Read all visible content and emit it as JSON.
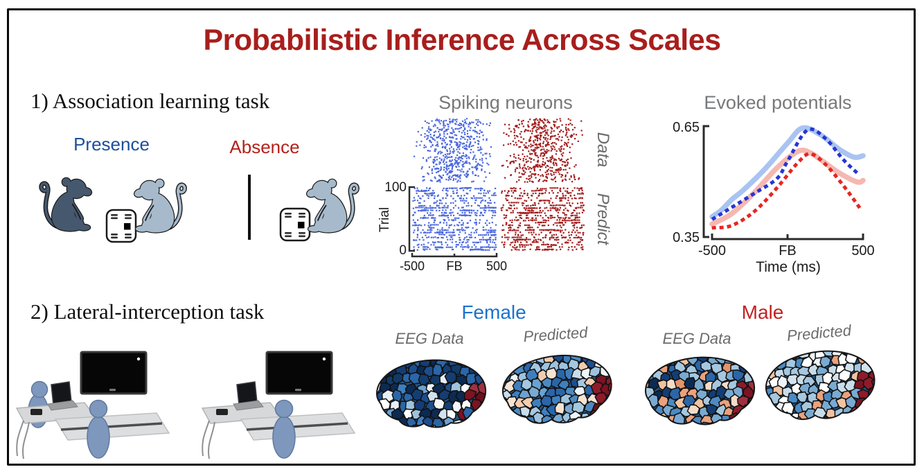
{
  "figure_title": "Probabilistic Inference Across Scales",
  "section1": {
    "heading": "1) Association learning task",
    "presence_label": "Presence",
    "absence_label": "Absence"
  },
  "section2": {
    "heading": "2) Lateral-interception task",
    "female_label": "Female",
    "male_label": "Male",
    "female_map_labels": [
      "EEG Data",
      "Predicted"
    ],
    "male_map_labels": [
      "EEG Data",
      "Predicted"
    ]
  },
  "spiking": {
    "title": "Spiking neurons",
    "row_labels": [
      "Data",
      "Predict"
    ],
    "ylabel": "Trial",
    "ytick_top": "100",
    "ytick_bottom": "0",
    "xticks": [
      "-500",
      "FB",
      "500"
    ]
  },
  "evoked": {
    "title": "Evoked potentials",
    "ytick_top": "0.65",
    "ytick_bottom": "0.35",
    "xticks": [
      "-500",
      "FB",
      "500"
    ],
    "xlabel": "Time (ms)"
  },
  "colors": {
    "title_red": "#a81e1c",
    "presence_blue": "#1c4f9c",
    "absence_red": "#b2221a",
    "female_blue": "#1a73cf",
    "male_red": "#c32120",
    "plot_title_gray": "#77787a",
    "panel_label_gray": "#6a6b6d",
    "monkey_dark": "#46586e",
    "monkey_light": "#a6bacc"
  },
  "chart_data": [
    {
      "type": "raster",
      "title": "Spiking neurons",
      "rows": [
        "Data",
        "Predict"
      ],
      "conditions": [
        {
          "name": "Presence",
          "color": "#4b68dd"
        },
        {
          "name": "Absence",
          "color": "#a21d1d"
        }
      ],
      "ylabel": "Trial",
      "ylim": [
        0,
        100
      ],
      "xlim_ms": [
        -500,
        500
      ],
      "x_event": "FB",
      "approx_dots_per_panel": 560
    },
    {
      "type": "line",
      "title": "Evoked potentials",
      "xlabel": "Time (ms)",
      "xlim_ms": [
        -500,
        500
      ],
      "x_event": "FB",
      "ylim": [
        0.35,
        0.65
      ],
      "series": [
        {
          "name": "Presence EEG data",
          "style": "solid",
          "color": "#a9c4f2",
          "x": [
            -500,
            -440,
            -370,
            -290,
            -150,
            0,
            100,
            220,
            340,
            440,
            500
          ],
          "y": [
            0.405,
            0.422,
            0.451,
            0.478,
            0.534,
            0.604,
            0.645,
            0.626,
            0.588,
            0.566,
            0.57
          ]
        },
        {
          "name": "Presence model prediction",
          "style": "dotted",
          "color": "#2636d4",
          "x": [
            -490,
            -370,
            -220,
            -70,
            0,
            130,
            250,
            370,
            470
          ],
          "y": [
            0.4,
            0.43,
            0.468,
            0.508,
            0.555,
            0.639,
            0.617,
            0.559,
            0.52
          ]
        },
        {
          "name": "Absence EEG data",
          "style": "solid",
          "color": "#f5b8b1",
          "x": [
            -500,
            -370,
            -220,
            -70,
            70,
            150,
            220,
            340,
            460,
            500
          ],
          "y": [
            0.385,
            0.413,
            0.47,
            0.537,
            0.582,
            0.578,
            0.559,
            0.524,
            0.499,
            0.503
          ]
        },
        {
          "name": "Absence model prediction",
          "style": "dotted",
          "color": "#e62621",
          "x": [
            -490,
            -370,
            -220,
            -70,
            70,
            150,
            250,
            370,
            485
          ],
          "y": [
            0.375,
            0.381,
            0.419,
            0.483,
            0.552,
            0.575,
            0.547,
            0.489,
            0.425
          ]
        }
      ]
    },
    {
      "type": "brain_maps",
      "edge_color": "#7c1322",
      "groups": [
        {
          "label": "Female",
          "color": "#1a73cf",
          "maps": [
            {
              "label": "EEG Data",
              "palette": [
                "#0d2a52",
                "#143d73",
                "#1d4e8c",
                "#2a66a8",
                "#3f7fbe",
                "#6ba2cf",
                "#9dc3de",
                "#d3e3ee",
                "#f3f6f8",
                "#ffffff",
                "#1d4e8c",
                "#143d73",
                "#0d2a52",
                "#2a66a8",
                "#ffffff",
                "#e8f0f6"
              ],
              "top_palette": [
                "#0d2a52",
                "#143d73",
                "#1d4e8c",
                "#2a66a8",
                "#123a66"
              ]
            },
            {
              "label": "Predicted",
              "palette": [
                "#2a66a8",
                "#4d8ac2",
                "#79aad2",
                "#a5c8e0",
                "#c9dde9",
                "#eef4f7",
                "#f6e3d3",
                "#f2cdb0",
                "#3f7fbe",
                "#9dc3de",
                "#6ba2cf",
                "#a5c8e0",
                "#1d4e8c"
              ]
            }
          ]
        },
        {
          "label": "Male",
          "color": "#c32120",
          "maps": [
            {
              "label": "EEG Data",
              "palette": [
                "#143d73",
                "#2a66a8",
                "#4d8ac2",
                "#79aad2",
                "#a5c8e0",
                "#f2c3a0",
                "#eaa27c",
                "#e4936b",
                "#f6dcc6",
                "#0d2a52",
                "#4d8ac2",
                "#f2c3a0",
                "#79aad2",
                "#eaa27c"
              ],
              "top_palette": [
                "#143d73",
                "#2a66a8",
                "#79aad2",
                "#a5c8e0",
                "#4d8ac2"
              ]
            },
            {
              "label": "Predicted",
              "palette": [
                "#4d8ac2",
                "#79aad2",
                "#a5c8e0",
                "#d3e3ee",
                "#ffffff",
                "#f2c3a0",
                "#eaa27c",
                "#c9dde9",
                "#eef4f7",
                "#79aad2",
                "#a5c8e0",
                "#ffffff"
              ]
            }
          ]
        }
      ]
    }
  ]
}
